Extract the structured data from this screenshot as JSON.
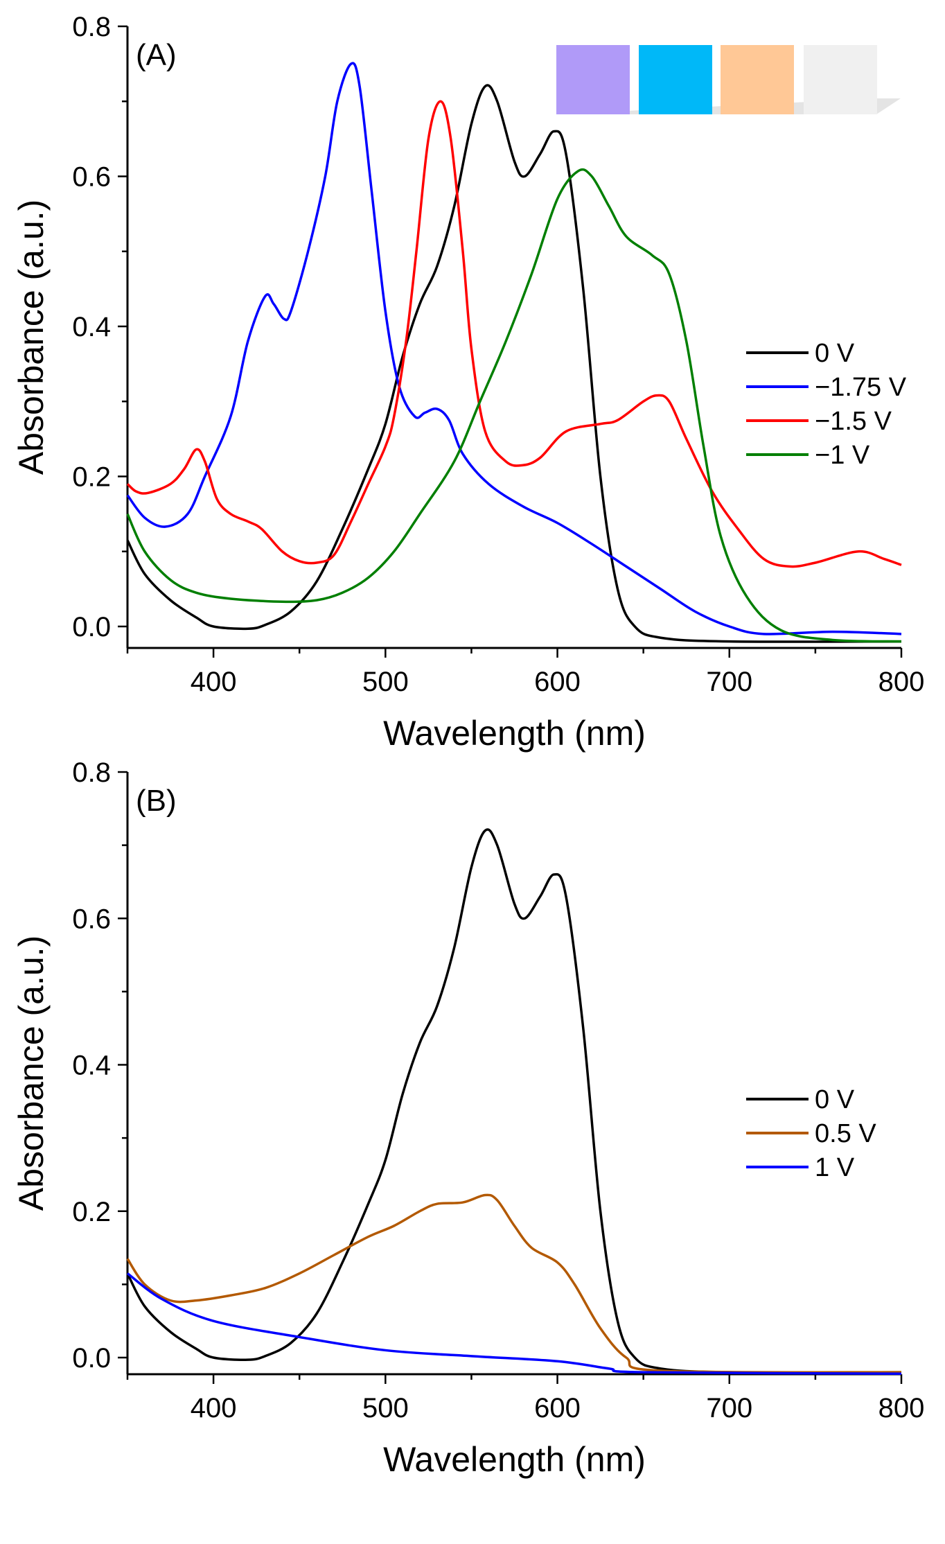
{
  "chart_data": [
    {
      "type": "line",
      "panel_label": "(A)",
      "xlabel": "Wavelength (nm)",
      "ylabel": "Absorbance (a.u.)",
      "xlim": [
        350,
        800
      ],
      "ylim": [
        -0.03,
        0.8
      ],
      "xticks": [
        400,
        500,
        600,
        700,
        800
      ],
      "yticks": [
        0.0,
        0.2,
        0.4,
        0.6,
        0.8
      ],
      "xtick_labels": [
        "400",
        "500",
        "600",
        "700",
        "800"
      ],
      "ytick_labels": [
        "0.0",
        "0.2",
        "0.4",
        "0.6",
        "0.8"
      ],
      "grid": false,
      "legend_position": "right",
      "color_swatches": [
        "#B09AF8",
        "#00B8F8",
        "#FFC896",
        "#F0F0F0"
      ],
      "series": [
        {
          "name": "0 V",
          "color": "#000000",
          "points": [
            [
              350,
              0.115
            ],
            [
              360,
              0.07
            ],
            [
              375,
              0.035
            ],
            [
              390,
              0.012
            ],
            [
              400,
              0.0
            ],
            [
              420,
              -0.003
            ],
            [
              430,
              0.002
            ],
            [
              445,
              0.02
            ],
            [
              460,
              0.06
            ],
            [
              475,
              0.13
            ],
            [
              490,
              0.21
            ],
            [
              500,
              0.27
            ],
            [
              510,
              0.36
            ],
            [
              520,
              0.43
            ],
            [
              530,
              0.48
            ],
            [
              540,
              0.56
            ],
            [
              550,
              0.67
            ],
            [
              558,
              0.72
            ],
            [
              565,
              0.7
            ],
            [
              575,
              0.62
            ],
            [
              581,
              0.6
            ],
            [
              590,
              0.63
            ],
            [
              598,
              0.66
            ],
            [
              605,
              0.63
            ],
            [
              615,
              0.45
            ],
            [
              625,
              0.2
            ],
            [
              635,
              0.05
            ],
            [
              645,
              0.0
            ],
            [
              660,
              -0.015
            ],
            [
              700,
              -0.02
            ],
            [
              800,
              -0.02
            ]
          ]
        },
        {
          "name": "−1.75 V",
          "color": "#0000FF",
          "points": [
            [
              350,
              0.175
            ],
            [
              360,
              0.145
            ],
            [
              372,
              0.133
            ],
            [
              385,
              0.15
            ],
            [
              395,
              0.2
            ],
            [
              410,
              0.28
            ],
            [
              420,
              0.38
            ],
            [
              430,
              0.44
            ],
            [
              435,
              0.43
            ],
            [
              441,
              0.41
            ],
            [
              445,
              0.42
            ],
            [
              455,
              0.5
            ],
            [
              465,
              0.6
            ],
            [
              472,
              0.7
            ],
            [
              480,
              0.75
            ],
            [
              485,
              0.72
            ],
            [
              492,
              0.58
            ],
            [
              500,
              0.42
            ],
            [
              508,
              0.32
            ],
            [
              517,
              0.28
            ],
            [
              523,
              0.285
            ],
            [
              530,
              0.29
            ],
            [
              537,
              0.275
            ],
            [
              545,
              0.23
            ],
            [
              560,
              0.19
            ],
            [
              580,
              0.16
            ],
            [
              600,
              0.138
            ],
            [
              620,
              0.11
            ],
            [
              640,
              0.08
            ],
            [
              660,
              0.05
            ],
            [
              680,
              0.02
            ],
            [
              700,
              0.0
            ],
            [
              720,
              -0.01
            ],
            [
              760,
              -0.007
            ],
            [
              800,
              -0.01
            ]
          ]
        },
        {
          "name": "−1.5 V",
          "color": "#FF0000",
          "points": [
            [
              350,
              0.19
            ],
            [
              355,
              0.18
            ],
            [
              362,
              0.178
            ],
            [
              375,
              0.19
            ],
            [
              383,
              0.21
            ],
            [
              390,
              0.236
            ],
            [
              395,
              0.22
            ],
            [
              402,
              0.17
            ],
            [
              410,
              0.15
            ],
            [
              420,
              0.14
            ],
            [
              428,
              0.13
            ],
            [
              440,
              0.1
            ],
            [
              450,
              0.087
            ],
            [
              460,
              0.085
            ],
            [
              470,
              0.095
            ],
            [
              480,
              0.14
            ],
            [
              490,
              0.19
            ],
            [
              500,
              0.24
            ],
            [
              505,
              0.28
            ],
            [
              512,
              0.38
            ],
            [
              518,
              0.5
            ],
            [
              525,
              0.65
            ],
            [
              532,
              0.7
            ],
            [
              538,
              0.65
            ],
            [
              545,
              0.5
            ],
            [
              550,
              0.37
            ],
            [
              558,
              0.26
            ],
            [
              570,
              0.22
            ],
            [
              580,
              0.215
            ],
            [
              590,
              0.225
            ],
            [
              605,
              0.26
            ],
            [
              625,
              0.27
            ],
            [
              635,
              0.275
            ],
            [
              650,
              0.3
            ],
            [
              658,
              0.308
            ],
            [
              665,
              0.3
            ],
            [
              675,
              0.25
            ],
            [
              690,
              0.18
            ],
            [
              705,
              0.13
            ],
            [
              720,
              0.09
            ],
            [
              735,
              0.08
            ],
            [
              750,
              0.085
            ],
            [
              775,
              0.1
            ],
            [
              790,
              0.09
            ],
            [
              800,
              0.082
            ]
          ]
        },
        {
          "name": "−1 V",
          "color": "#007F00",
          "points": [
            [
              350,
              0.15
            ],
            [
              360,
              0.1
            ],
            [
              375,
              0.062
            ],
            [
              390,
              0.045
            ],
            [
              410,
              0.037
            ],
            [
              440,
              0.033
            ],
            [
              460,
              0.035
            ],
            [
              475,
              0.045
            ],
            [
              490,
              0.065
            ],
            [
              505,
              0.1
            ],
            [
              520,
              0.15
            ],
            [
              540,
              0.22
            ],
            [
              555,
              0.3
            ],
            [
              570,
              0.38
            ],
            [
              585,
              0.47
            ],
            [
              600,
              0.57
            ],
            [
              612,
              0.607
            ],
            [
              620,
              0.6
            ],
            [
              630,
              0.56
            ],
            [
              640,
              0.52
            ],
            [
              655,
              0.495
            ],
            [
              665,
              0.47
            ],
            [
              675,
              0.38
            ],
            [
              685,
              0.24
            ],
            [
              695,
              0.12
            ],
            [
              710,
              0.04
            ],
            [
              730,
              -0.005
            ],
            [
              760,
              -0.018
            ],
            [
              800,
              -0.02
            ]
          ]
        }
      ]
    },
    {
      "type": "line",
      "panel_label": "(B)",
      "xlabel": "Wavelength (nm)",
      "ylabel": "Absorbance (a.u.)",
      "xlim": [
        350,
        800
      ],
      "ylim": [
        -0.03,
        0.8
      ],
      "xticks": [
        400,
        500,
        600,
        700,
        800
      ],
      "yticks": [
        0.0,
        0.2,
        0.4,
        0.6,
        0.8
      ],
      "xtick_labels": [
        "400",
        "500",
        "600",
        "700",
        "800"
      ],
      "ytick_labels": [
        "0.0",
        "0.2",
        "0.4",
        "0.6",
        "0.8"
      ],
      "grid": false,
      "legend_position": "right",
      "series": [
        {
          "name": "0 V",
          "color": "#000000",
          "points": [
            [
              350,
              0.115
            ],
            [
              360,
              0.07
            ],
            [
              375,
              0.035
            ],
            [
              390,
              0.012
            ],
            [
              400,
              0.0
            ],
            [
              420,
              -0.003
            ],
            [
              430,
              0.002
            ],
            [
              445,
              0.02
            ],
            [
              460,
              0.06
            ],
            [
              475,
              0.13
            ],
            [
              490,
              0.21
            ],
            [
              500,
              0.27
            ],
            [
              510,
              0.36
            ],
            [
              520,
              0.43
            ],
            [
              530,
              0.48
            ],
            [
              540,
              0.56
            ],
            [
              550,
              0.67
            ],
            [
              558,
              0.72
            ],
            [
              565,
              0.7
            ],
            [
              575,
              0.62
            ],
            [
              581,
              0.6
            ],
            [
              590,
              0.63
            ],
            [
              598,
              0.66
            ],
            [
              605,
              0.63
            ],
            [
              615,
              0.45
            ],
            [
              625,
              0.2
            ],
            [
              635,
              0.05
            ],
            [
              645,
              0.0
            ],
            [
              660,
              -0.015
            ],
            [
              700,
              -0.02
            ],
            [
              800,
              -0.02
            ]
          ]
        },
        {
          "name": "0.5 V",
          "color": "#B35900",
          "points": [
            [
              350,
              0.135
            ],
            [
              360,
              0.1
            ],
            [
              375,
              0.078
            ],
            [
              390,
              0.078
            ],
            [
              410,
              0.085
            ],
            [
              430,
              0.095
            ],
            [
              450,
              0.115
            ],
            [
              470,
              0.14
            ],
            [
              490,
              0.165
            ],
            [
              505,
              0.18
            ],
            [
              520,
              0.2
            ],
            [
              530,
              0.21
            ],
            [
              545,
              0.212
            ],
            [
              558,
              0.222
            ],
            [
              565,
              0.215
            ],
            [
              575,
              0.18
            ],
            [
              585,
              0.15
            ],
            [
              600,
              0.13
            ],
            [
              610,
              0.1
            ],
            [
              625,
              0.04
            ],
            [
              640,
              0.0
            ],
            [
              660,
              -0.018
            ],
            [
              800,
              -0.02
            ]
          ]
        },
        {
          "name": "1 V",
          "color": "#0000FF",
          "points": [
            [
              350,
              0.115
            ],
            [
              370,
              0.08
            ],
            [
              400,
              0.05
            ],
            [
              450,
              0.028
            ],
            [
              500,
              0.01
            ],
            [
              550,
              0.002
            ],
            [
              600,
              -0.005
            ],
            [
              630,
              -0.015
            ],
            [
              650,
              -0.02
            ],
            [
              800,
              -0.022
            ]
          ]
        }
      ]
    }
  ]
}
